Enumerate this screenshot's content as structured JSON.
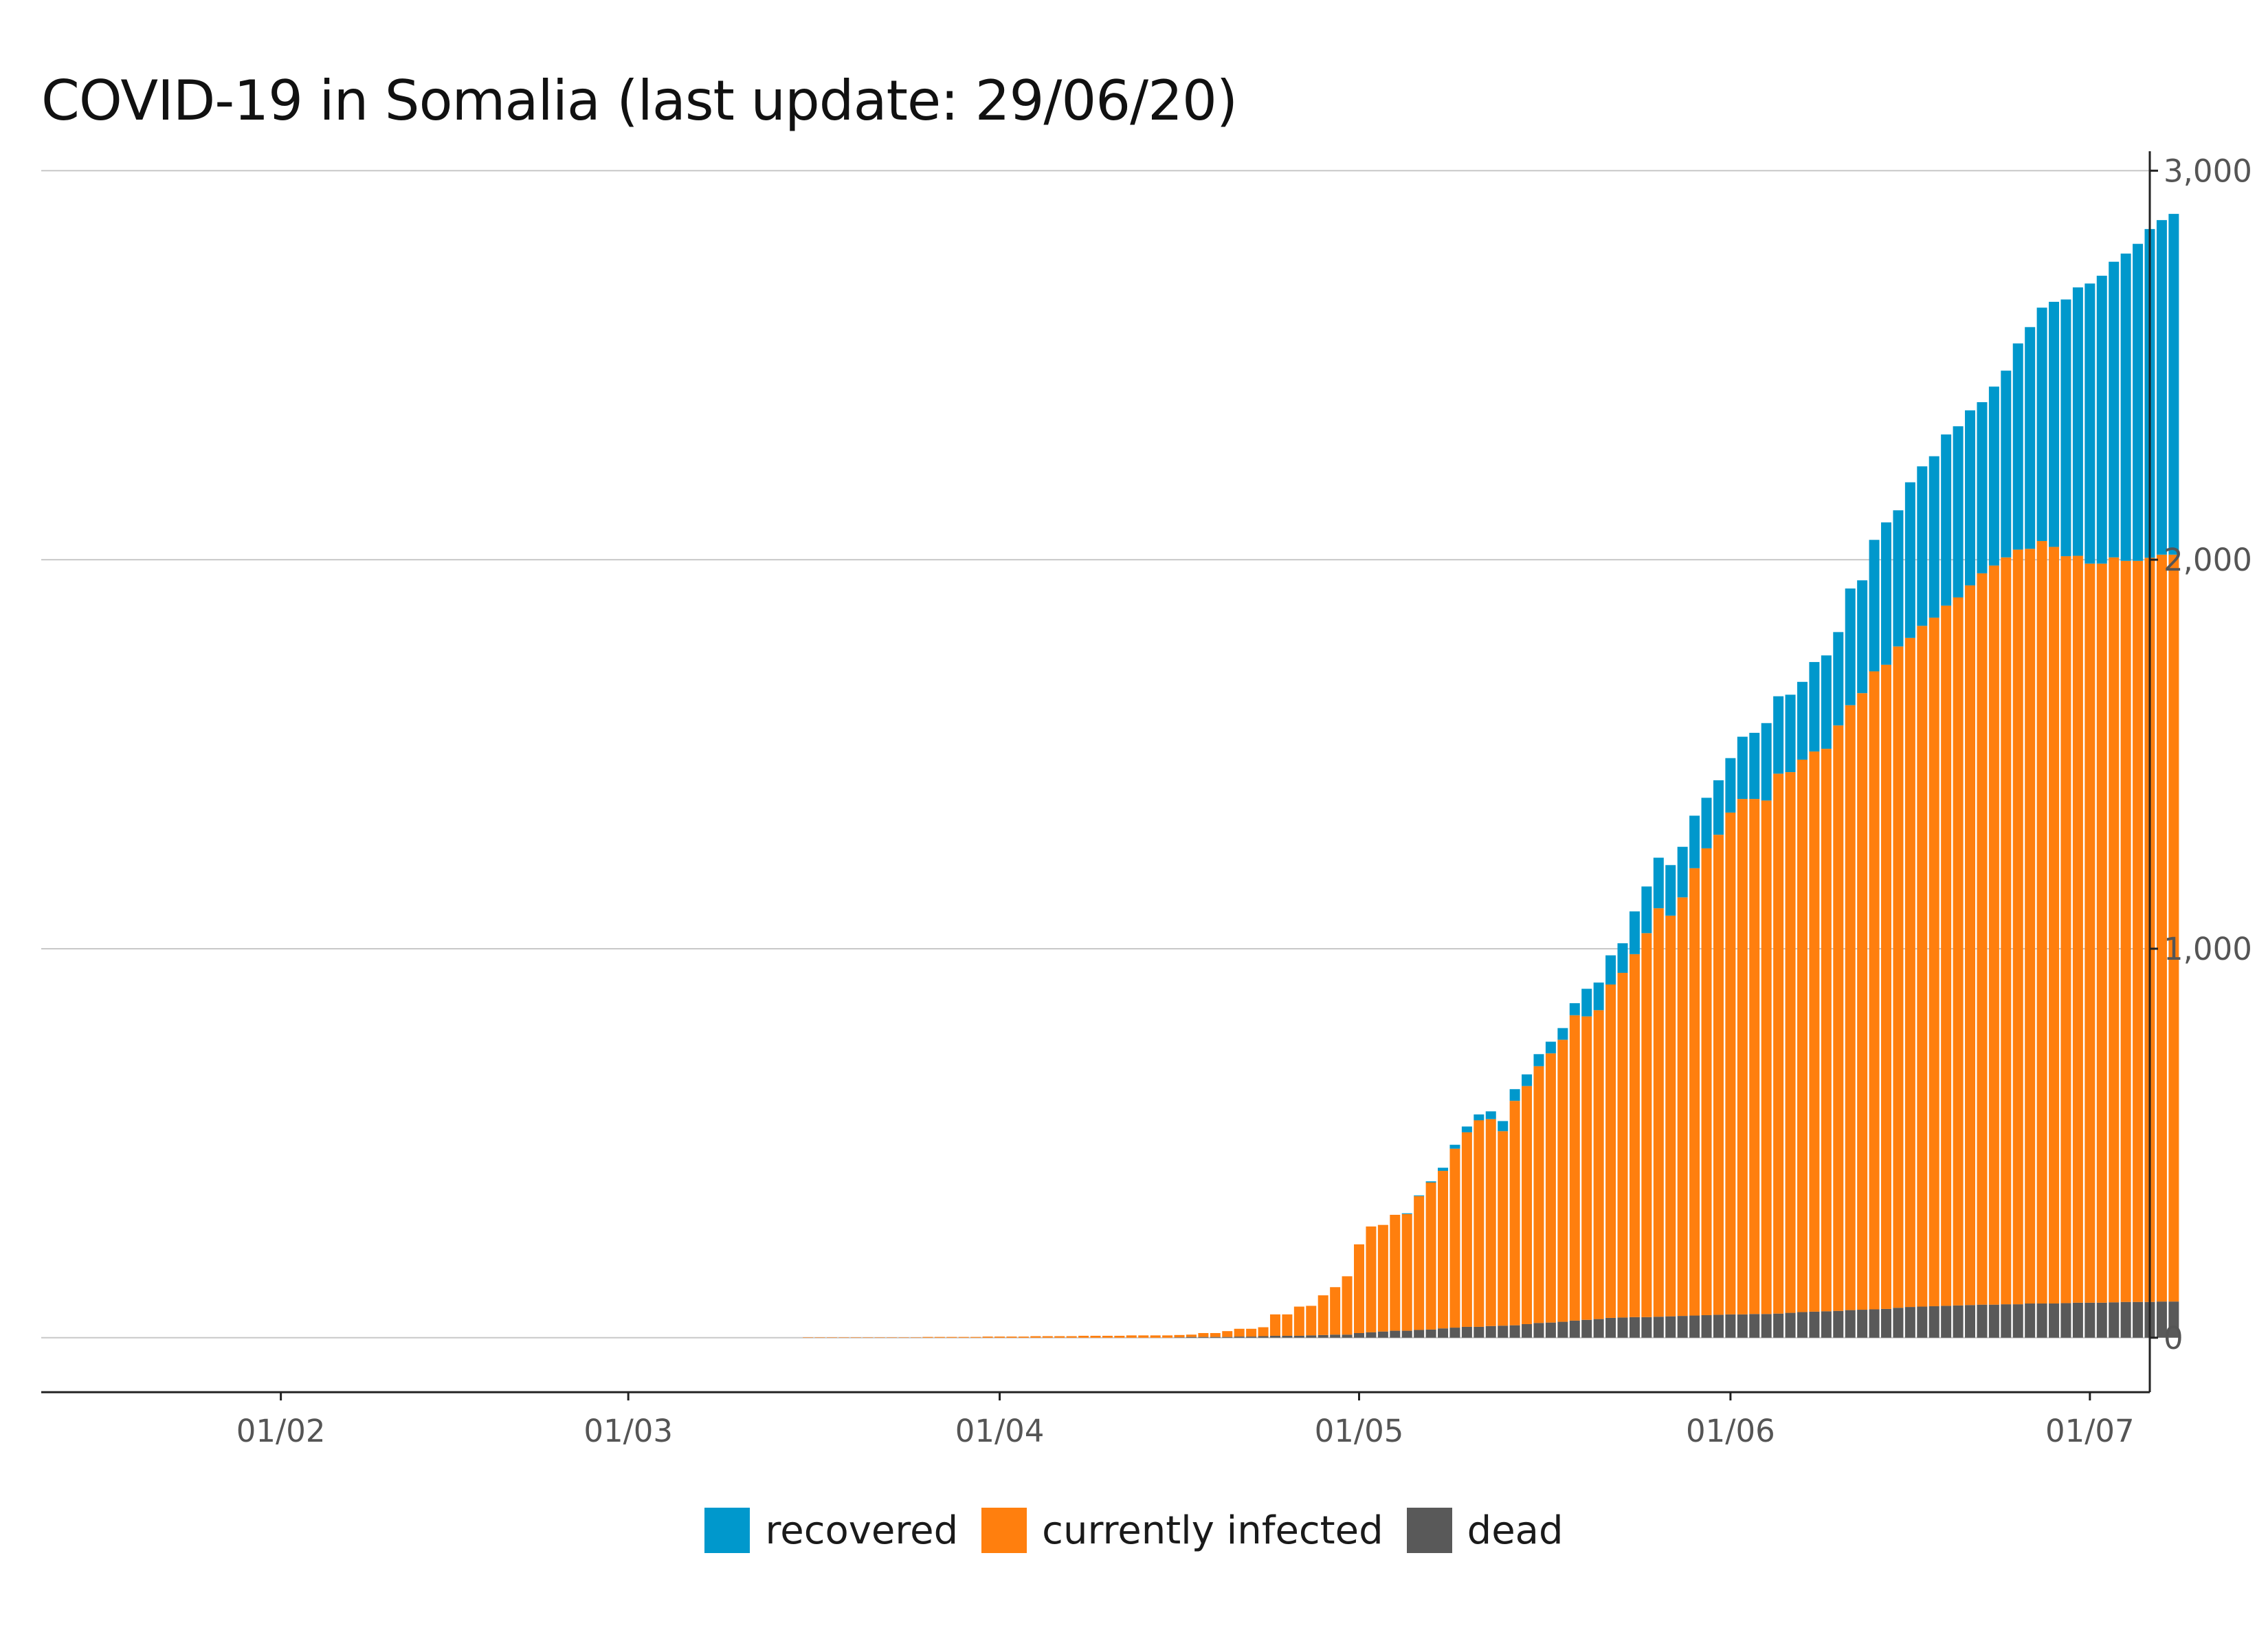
{
  "chart_data": {
    "type": "bar",
    "stacked": true,
    "title": "COVID-19 in Somalia (last update: 29/06/20)",
    "xlabel": "",
    "ylabel": "",
    "x_start": "2020-01-22",
    "x_end": "2020-06-29",
    "xlim": [
      "2020-01-12",
      "2020-07-06"
    ],
    "ylim": [
      -140,
      3050
    ],
    "y_axis_side": "right",
    "grid": true,
    "legend_position": "bottom",
    "x_ticks": [
      "01/02",
      "01/03",
      "01/04",
      "01/05",
      "01/06",
      "01/07"
    ],
    "y_ticks": [
      "0",
      "1,000",
      "2,000",
      "3,000"
    ],
    "series": [
      {
        "name": "dead",
        "color": "#595959",
        "values": [
          0,
          0,
          0,
          0,
          0,
          0,
          0,
          0,
          0,
          0,
          0,
          0,
          0,
          0,
          0,
          0,
          0,
          0,
          0,
          0,
          0,
          0,
          0,
          0,
          0,
          0,
          0,
          0,
          0,
          0,
          0,
          0,
          0,
          0,
          0,
          0,
          0,
          0,
          0,
          0,
          0,
          0,
          0,
          0,
          0,
          0,
          0,
          0,
          0,
          0,
          0,
          0,
          0,
          0,
          0,
          0,
          0,
          0,
          0,
          0,
          0,
          0,
          0,
          0,
          0,
          0,
          0,
          0,
          0,
          0,
          0,
          0,
          0,
          0,
          0,
          0,
          0,
          0,
          0,
          0,
          0,
          0,
          0,
          0,
          0,
          1,
          2,
          2,
          2,
          2,
          3,
          3,
          4,
          5,
          5,
          5,
          6,
          7,
          8,
          8,
          12,
          14,
          16,
          18,
          18,
          20,
          21,
          24,
          26,
          28,
          28,
          30,
          31,
          32,
          35,
          38,
          39,
          41,
          44,
          46,
          48,
          51,
          52,
          53,
          53,
          54,
          55,
          56,
          57,
          58,
          59,
          60,
          60,
          61,
          61,
          62,
          64,
          66,
          67,
          68,
          69,
          71,
          72,
          73,
          74,
          77,
          79,
          80,
          81,
          82,
          83,
          84,
          85,
          85,
          86,
          86,
          88,
          88,
          88,
          89,
          90,
          90,
          90,
          91,
          92,
          92,
          92,
          93,
          93
        ]
      },
      {
        "name": "currently infected",
        "color": "#ff7f0e",
        "values": [
          0,
          0,
          0,
          0,
          0,
          0,
          0,
          0,
          0,
          0,
          0,
          0,
          0,
          0,
          0,
          0,
          0,
          0,
          0,
          0,
          0,
          0,
          0,
          0,
          0,
          0,
          0,
          0,
          0,
          0,
          0,
          0,
          0,
          0,
          0,
          0,
          0,
          0,
          0,
          0,
          0,
          0,
          0,
          0,
          0,
          0,
          0,
          0,
          0,
          0,
          0,
          0,
          0,
          0,
          1,
          1,
          1,
          1,
          1,
          1,
          1,
          1,
          1,
          1,
          2,
          2,
          2,
          2,
          2,
          3,
          3,
          3,
          3,
          4,
          4,
          4,
          4,
          5,
          5,
          5,
          5,
          6,
          6,
          6,
          6,
          6,
          6,
          10,
          10,
          15,
          20,
          20,
          23,
          55,
          55,
          75,
          76,
          102,
          122,
          150,
          228,
          272,
          274,
          298,
          300,
          344,
          378,
          405,
          460,
          500,
          531,
          532,
          500,
          577,
          612,
          660,
          692,
          725,
          785,
          780,
          794,
          857,
          886,
          933,
          987,
          1050,
          1030,
          1076,
          1150,
          1200,
          1234,
          1290,
          1325,
          1324,
          1320,
          1388,
          1390,
          1420,
          1440,
          1446,
          1505,
          1555,
          1585,
          1640,
          1656,
          1700,
          1720,
          1750,
          1770,
          1800,
          1820,
          1850,
          1880,
          1900,
          1920,
          1940,
          1940,
          1960,
          1945,
          1920,
          1920,
          1900,
          1900,
          1915,
          1905,
          1905,
          1913,
          1920,
          1920,
          1915,
          1902
        ]
      },
      {
        "name": "recovered",
        "color": "#0098cc",
        "values": [
          0,
          0,
          0,
          0,
          0,
          0,
          0,
          0,
          0,
          0,
          0,
          0,
          0,
          0,
          0,
          0,
          0,
          0,
          0,
          0,
          0,
          0,
          0,
          0,
          0,
          0,
          0,
          0,
          0,
          0,
          0,
          0,
          0,
          0,
          0,
          0,
          0,
          0,
          0,
          0,
          0,
          0,
          0,
          0,
          0,
          0,
          0,
          0,
          0,
          0,
          0,
          0,
          0,
          0,
          0,
          0,
          0,
          0,
          0,
          0,
          0,
          0,
          0,
          0,
          0,
          0,
          0,
          0,
          0,
          0,
          0,
          0,
          0,
          0,
          0,
          0,
          0,
          0,
          0,
          0,
          0,
          0,
          0,
          0,
          0,
          0,
          0,
          0,
          0,
          0,
          0,
          0,
          0,
          0,
          0,
          0,
          0,
          0,
          0,
          0,
          0,
          0,
          0,
          0,
          2,
          2,
          3,
          8,
          10,
          15,
          15,
          20,
          26,
          30,
          30,
          31,
          30,
          30,
          31,
          71,
          71,
          75,
          76,
          110,
          120,
          130,
          130,
          130,
          135,
          130,
          140,
          140,
          160,
          170,
          199,
          199,
          199,
          200,
          230,
          240,
          240,
          300,
          290,
          338,
          366,
          350,
          400,
          410,
          415,
          440,
          440,
          450,
          440,
          460,
          480,
          530,
          570,
          600,
          630,
          660,
          690,
          720,
          740,
          760,
          790,
          815,
          845,
          860,
          876,
          880,
          880,
          885,
          896
        ]
      }
    ]
  }
}
